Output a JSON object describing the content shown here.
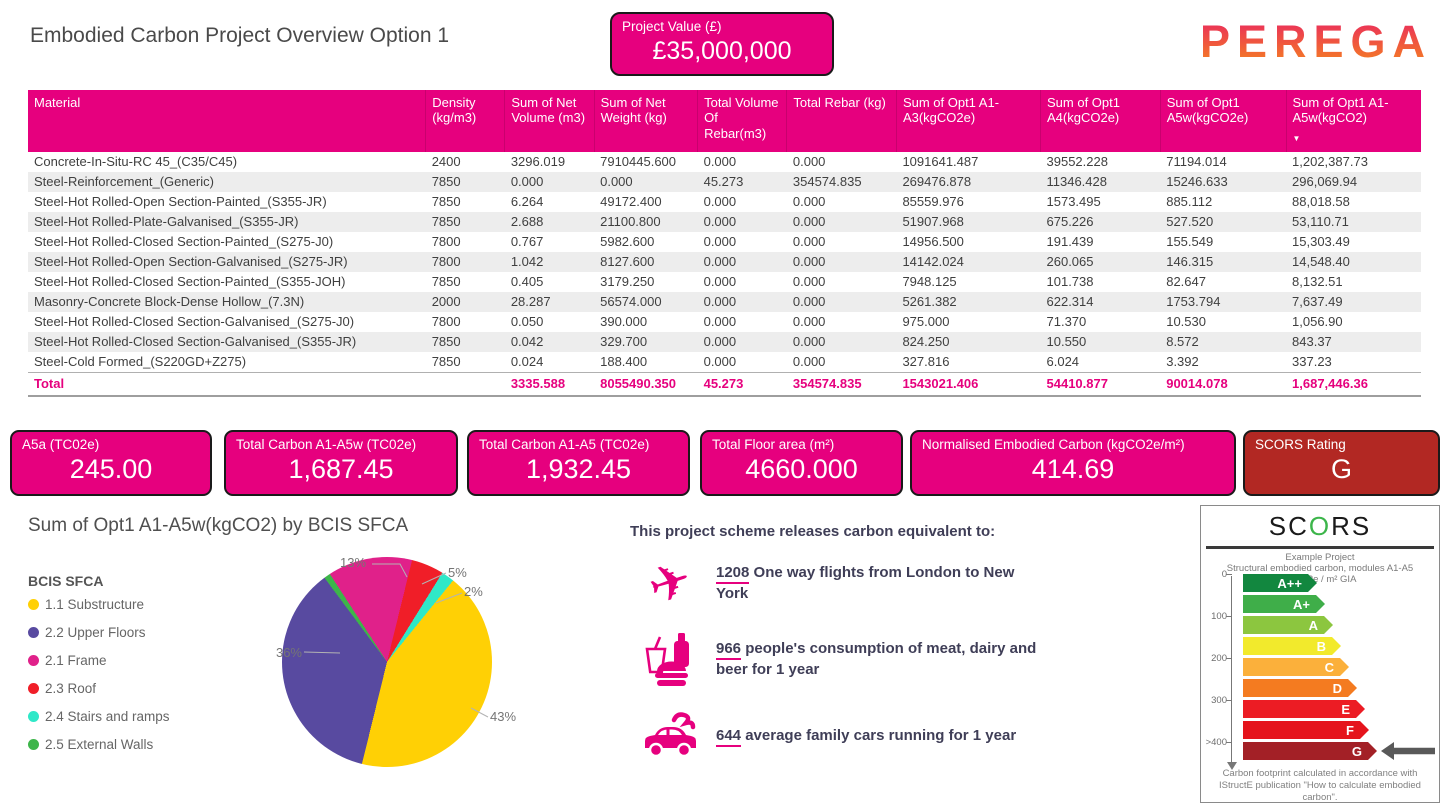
{
  "header": {
    "title": "Embodied Carbon Project Overview Option 1",
    "project_value": {
      "label": "Project Value (£)",
      "value": "£35,000,000"
    },
    "logo_text": "PEREGA"
  },
  "colors": {
    "accent_pink": "#E6007E",
    "scors_card_red": "#B22823",
    "row_alt": "#EDEDED"
  },
  "table": {
    "columns": [
      "Material",
      "Density (kg/m3)",
      "Sum of Net Volume (m3)",
      "Sum of Net Weight (kg)",
      "Total Volume Of Rebar(m3)",
      "Total Rebar (kg)",
      "Sum of Opt1 A1-A3(kgCO2e)",
      "Sum of Opt1 A4(kgCO2e)",
      "Sum of Opt1 A5w(kgCO2e)",
      "Sum of Opt1 A1-A5w(kgCO2)"
    ],
    "sort_icon": "▼",
    "rows": [
      [
        "Concrete-In-Situ-RC 45_(C35/C45)",
        "2400",
        "3296.019",
        "7910445.600",
        "0.000",
        "0.000",
        "1091641.487",
        "39552.228",
        "71194.014",
        "1,202,387.73"
      ],
      [
        "Steel-Reinforcement_(Generic)",
        "7850",
        "0.000",
        "0.000",
        "45.273",
        "354574.835",
        "269476.878",
        "11346.428",
        "15246.633",
        "296,069.94"
      ],
      [
        "Steel-Hot Rolled-Open Section-Painted_(S355-JR)",
        "7850",
        "6.264",
        "49172.400",
        "0.000",
        "0.000",
        "85559.976",
        "1573.495",
        "885.112",
        "88,018.58"
      ],
      [
        "Steel-Hot Rolled-Plate-Galvanised_(S355-JR)",
        "7850",
        "2.688",
        "21100.800",
        "0.000",
        "0.000",
        "51907.968",
        "675.226",
        "527.520",
        "53,110.71"
      ],
      [
        "Steel-Hot Rolled-Closed Section-Painted_(S275-J0)",
        "7800",
        "0.767",
        "5982.600",
        "0.000",
        "0.000",
        "14956.500",
        "191.439",
        "155.549",
        "15,303.49"
      ],
      [
        "Steel-Hot Rolled-Open Section-Galvanised_(S275-JR)",
        "7800",
        "1.042",
        "8127.600",
        "0.000",
        "0.000",
        "14142.024",
        "260.065",
        "146.315",
        "14,548.40"
      ],
      [
        "Steel-Hot Rolled-Closed Section-Painted_(S355-JOH)",
        "7850",
        "0.405",
        "3179.250",
        "0.000",
        "0.000",
        "7948.125",
        "101.738",
        "82.647",
        "8,132.51"
      ],
      [
        "Masonry-Concrete Block-Dense Hollow_(7.3N)",
        "2000",
        "28.287",
        "56574.000",
        "0.000",
        "0.000",
        "5261.382",
        "622.314",
        "1753.794",
        "7,637.49"
      ],
      [
        "Steel-Hot Rolled-Closed Section-Galvanised_(S275-J0)",
        "7800",
        "0.050",
        "390.000",
        "0.000",
        "0.000",
        "975.000",
        "71.370",
        "10.530",
        "1,056.90"
      ],
      [
        "Steel-Hot Rolled-Closed Section-Galvanised_(S355-JR)",
        "7850",
        "0.042",
        "329.700",
        "0.000",
        "0.000",
        "824.250",
        "10.550",
        "8.572",
        "843.37"
      ],
      [
        "Steel-Cold Formed_(S220GD+Z275)",
        "7850",
        "0.024",
        "188.400",
        "0.000",
        "0.000",
        "327.816",
        "6.024",
        "3.392",
        "337.23"
      ]
    ],
    "total": [
      "Total",
      "",
      "3335.588",
      "8055490.350",
      "45.273",
      "354574.835",
      "1543021.406",
      "54410.877",
      "90014.078",
      "1,687,446.36"
    ]
  },
  "kpis": [
    {
      "label": "A5a (TC02e)",
      "value": "245.00",
      "color": "#E6007E"
    },
    {
      "label": "Total Carbon A1-A5w (TC02e)",
      "value": "1,687.45",
      "color": "#E6007E"
    },
    {
      "label": "Total Carbon A1-A5 (TC02e)",
      "value": "1,932.45",
      "color": "#E6007E"
    },
    {
      "label": "Total Floor area (m²)",
      "value": "4660.000",
      "color": "#E6007E"
    },
    {
      "label": "Normalised Embodied Carbon (kgCO2e/m²)",
      "value": "414.69",
      "color": "#E6007E"
    },
    {
      "label": "SCORS Rating",
      "value": "G",
      "color": "#B22823"
    }
  ],
  "chart_data": {
    "type": "pie",
    "title": "Sum of Opt1 A1-A5w(kgCO2) by BCIS SFCA",
    "legend_title": "BCIS SFCA",
    "legend_position": "left",
    "slices": [
      {
        "label": "2.1 Frame",
        "pct": 13,
        "pct_label": "13%",
        "color": "#E0218A"
      },
      {
        "label": "2.3 Roof",
        "pct": 5,
        "pct_label": "5%",
        "color": "#F01E28"
      },
      {
        "label": "2.4 Stairs and ramps",
        "pct": 2,
        "pct_label": "2%",
        "color": "#2FE8C8"
      },
      {
        "label": "1.1 Substructure",
        "pct": 43,
        "pct_label": "43%",
        "color": "#FFD005"
      },
      {
        "label": "2.2 Upper Floors",
        "pct": 36,
        "pct_label": "36%",
        "color": "#584AA0"
      },
      {
        "label": "2.5 External Walls",
        "pct": 1,
        "pct_label": "",
        "color": "#3DB54A"
      }
    ],
    "legend_order": [
      "1.1 Substructure",
      "2.2 Upper Floors",
      "2.1 Frame",
      "2.3 Roof",
      "2.4 Stairs and ramps",
      "2.5 External Walls"
    ]
  },
  "equivalents": {
    "heading": "This project scheme releases carbon equivalent to:",
    "items": [
      {
        "icon": "plane-icon",
        "number": "1208",
        "text": "One way flights from London to New York"
      },
      {
        "icon": "food-icon",
        "number": "966",
        "text": "people's consumption of meat, dairy and beer for 1 year"
      },
      {
        "icon": "car-icon",
        "number": "644",
        "text": "average family cars running for 1 year"
      }
    ]
  },
  "scors": {
    "title": "SCORS",
    "subtitle_lines": [
      "Example Project",
      "Structural embodied carbon, modules A1-A5",
      "kgCO2e / m² GIA"
    ],
    "axis_ticks": [
      "0",
      "100",
      "200",
      "300",
      ">400"
    ],
    "bands": [
      {
        "label": "A++",
        "color": "#12873F"
      },
      {
        "label": "A+",
        "color": "#3FAE49"
      },
      {
        "label": "A",
        "color": "#8CC63F"
      },
      {
        "label": "B",
        "color": "#F2EA2C"
      },
      {
        "label": "C",
        "color": "#FBB03B"
      },
      {
        "label": "D",
        "color": "#F47B20"
      },
      {
        "label": "E",
        "color": "#EC1C24"
      },
      {
        "label": "F",
        "color": "#E5141C"
      },
      {
        "label": "G",
        "color": "#A32026"
      }
    ],
    "rating": "G",
    "footer": "Carbon footprint calculated in accordance with IStructE publication \"How to calculate embodied carbon\"."
  }
}
